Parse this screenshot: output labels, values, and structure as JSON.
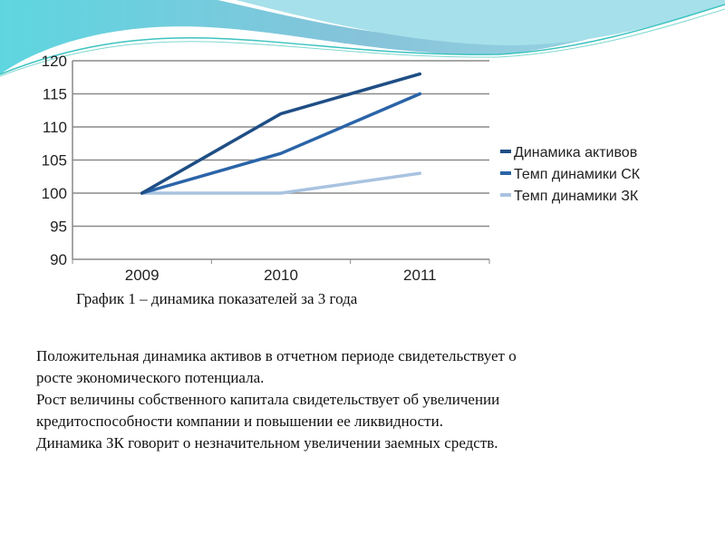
{
  "chart_data": {
    "type": "line",
    "categories": [
      "2009",
      "2010",
      "2011"
    ],
    "series": [
      {
        "name": "Динамика активов",
        "values": [
          100,
          112,
          118
        ],
        "color": "#1f4e85"
      },
      {
        "name": "Темп динамики СК",
        "values": [
          100,
          106,
          115
        ],
        "color": "#2a64a8"
      },
      {
        "name": "Темп динамики ЗК",
        "values": [
          100,
          100,
          103
        ],
        "color": "#a9c3e0"
      }
    ],
    "ylim": [
      90,
      120
    ],
    "yticks": [
      "90",
      "95",
      "100",
      "105",
      "110",
      "115",
      "120"
    ],
    "grid": true,
    "legend_position": "right"
  },
  "caption": "График 1 – динамика показателей за 3 года",
  "paragraphs": [
    "Положительная динамика активов в отчетном периоде свидетельствует о",
    "росте экономического потенциала.",
    "Рост величины собственного капитала свидетельствует об увеличении",
    "кредитоспособности компании и повышении ее ликвидности.",
    "Динамика  ЗК говорит о незначительном увеличении заемных средств."
  ]
}
